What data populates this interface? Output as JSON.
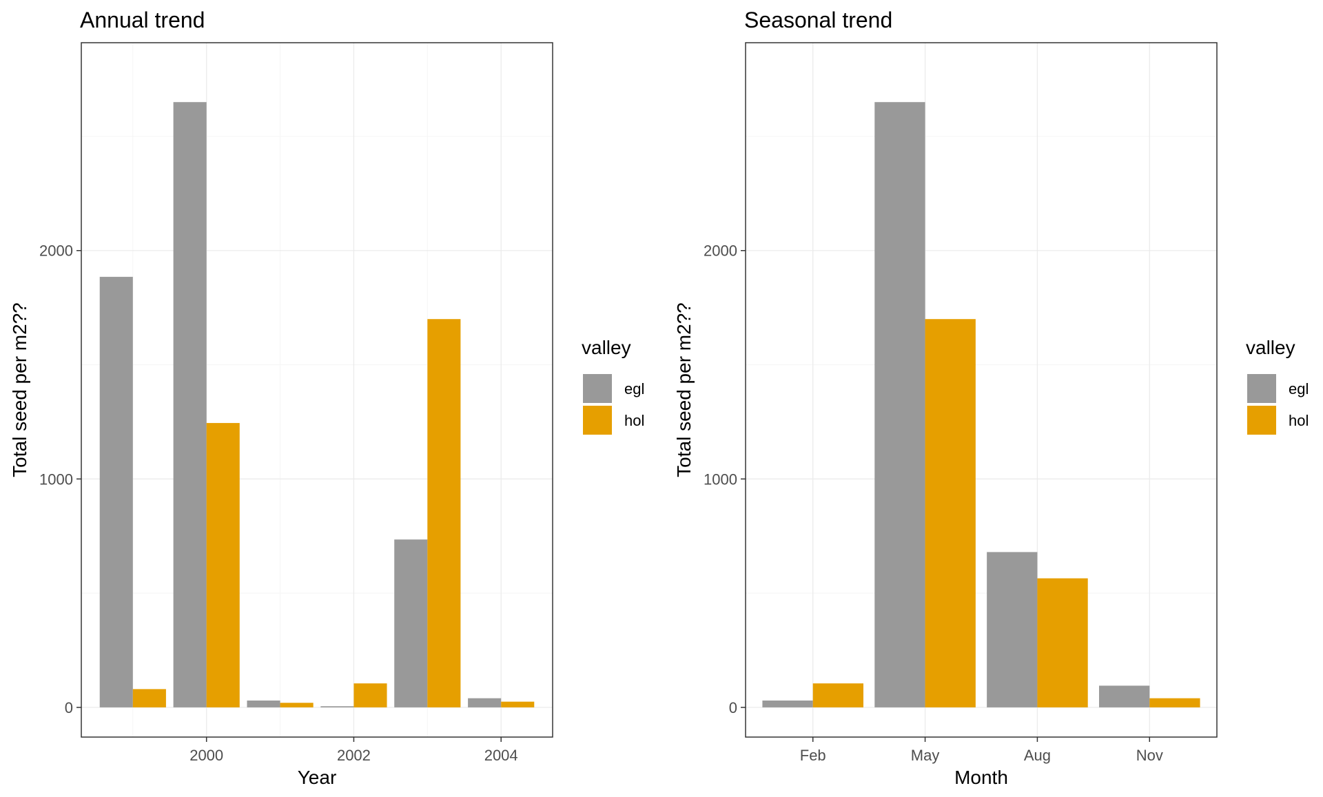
{
  "legend": {
    "title": "valley",
    "entries": [
      {
        "label": "egl",
        "color": "#999999"
      },
      {
        "label": "hol",
        "color": "#E69F00"
      }
    ]
  },
  "chart_data": [
    {
      "type": "bar",
      "title": "Annual trend",
      "xlabel": "Year",
      "ylabel": "Total seed per m2??",
      "x_ticks": [
        "2000",
        "2002",
        "2004"
      ],
      "categories": [
        "1999",
        "2000",
        "2001",
        "2002",
        "2003",
        "2004"
      ],
      "series": [
        {
          "name": "egl",
          "color": "#999999",
          "values": [
            1885,
            2650,
            30,
            5,
            735,
            40
          ]
        },
        {
          "name": "hol",
          "color": "#E69F00",
          "values": [
            80,
            1245,
            20,
            105,
            1700,
            25
          ]
        }
      ],
      "ylim": [
        -130,
        2910
      ],
      "y_ticks": [
        0,
        1000,
        2000
      ],
      "grid": true,
      "legend_position": "right"
    },
    {
      "type": "bar",
      "title": "Seasonal trend",
      "xlabel": "Month",
      "ylabel": "Total seed per m2??",
      "categories": [
        "Feb",
        "May",
        "Aug",
        "Nov"
      ],
      "series": [
        {
          "name": "egl",
          "color": "#999999",
          "values": [
            30,
            2650,
            680,
            95
          ]
        },
        {
          "name": "hol",
          "color": "#E69F00",
          "values": [
            105,
            1700,
            565,
            40
          ]
        }
      ],
      "ylim": [
        -130,
        2910
      ],
      "y_ticks": [
        0,
        1000,
        2000
      ],
      "grid": true,
      "legend_position": "right"
    }
  ]
}
